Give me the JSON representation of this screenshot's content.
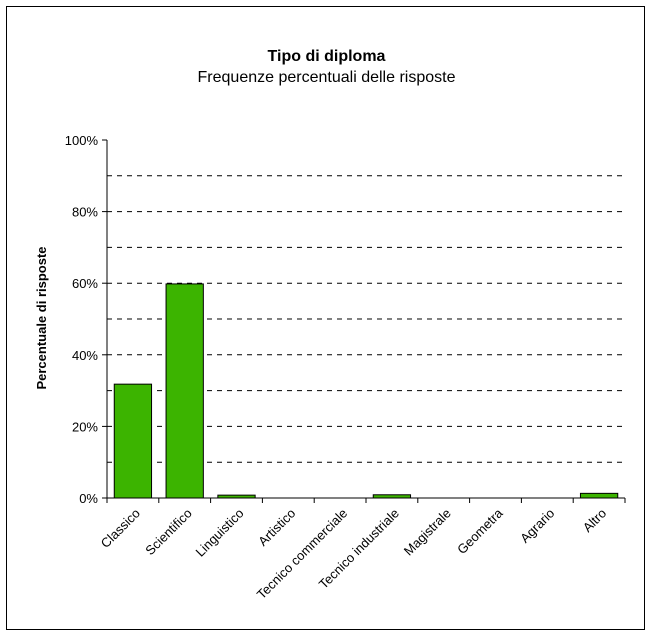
{
  "chart_data": {
    "type": "bar",
    "title": "Tipo di diploma",
    "subtitle": "Frequenze percentuali delle risposte",
    "xlabel": "",
    "ylabel": "Percentuale di risposte",
    "categories": [
      "Classico",
      "Scientifico",
      "Linguistico",
      "Artistico",
      "Tecnico commerciale",
      "Tecnico industriale",
      "Magistrale",
      "Geometra",
      "Agrario",
      "Altro"
    ],
    "values": [
      31.8,
      59.8,
      0.8,
      0,
      0,
      0.9,
      0,
      0,
      0,
      1.3
    ],
    "ylim": [
      0,
      100
    ],
    "yticks": [
      "0%",
      "20%",
      "40%",
      "60%",
      "80%",
      "100%"
    ],
    "grid": "dashed horizontal every 10%",
    "colors": {
      "bar": "#3cb400",
      "bar_border": "#000000"
    }
  }
}
